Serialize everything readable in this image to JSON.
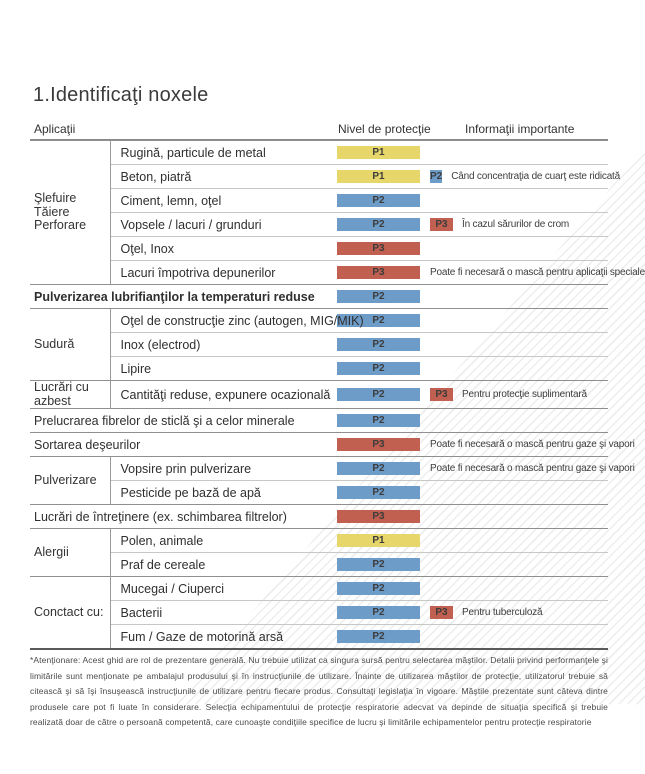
{
  "page": {
    "title": "1.Identificaţi noxele"
  },
  "legend": {
    "colors": {
      "P1": "#e7d76b",
      "P2": "#6d9cc9",
      "P3": "#c16050"
    }
  },
  "table": {
    "columns": {
      "applications": "Aplicaţii",
      "protection": "Nivel de protecţie",
      "info": "Informaţii importante"
    },
    "sections": [
      {
        "category": "Şlefuire\nTăiere\nPerforare",
        "rows": [
          {
            "label": "Rugină, particule de metal",
            "badges": [
              "P1"
            ],
            "note": ""
          },
          {
            "label": "Beton, piatră",
            "badges": [
              "P1",
              "P2"
            ],
            "note": "Când concentraţia de cuarţ este ridicată"
          },
          {
            "label": "Ciment, lemn, oţel",
            "badges": [
              "P2"
            ],
            "note": ""
          },
          {
            "label": "Vopsele / lacuri / grunduri",
            "badges": [
              "P2",
              "P3"
            ],
            "note": "În cazul sărurilor de crom"
          },
          {
            "label": "Oţel, Inox",
            "badges": [
              "P3"
            ],
            "note": ""
          },
          {
            "label": "Lacuri împotriva depunerilor",
            "badges": [
              "P3"
            ],
            "note": "Poate fi necesară o mască pentru aplicaţii speciale"
          }
        ]
      },
      {
        "category": null,
        "bold": true,
        "rows": [
          {
            "label": "Pulverizarea lubrifianţilor la temperaturi reduse",
            "badges": [
              "P2"
            ],
            "note": ""
          }
        ]
      },
      {
        "category": "Sudură",
        "rows": [
          {
            "label": "Oţel de construcţie zinc (autogen, MIG/MIK)",
            "badges": [
              "P2"
            ],
            "note": ""
          },
          {
            "label": "Inox (electrod)",
            "badges": [
              "P2"
            ],
            "note": ""
          },
          {
            "label": "Lipire",
            "badges": [
              "P2"
            ],
            "note": ""
          }
        ]
      },
      {
        "category": "Lucrări cu azbest",
        "rows": [
          {
            "label": "Cantităţi reduse, expunere ocazională",
            "badges": [
              "P2",
              "P3"
            ],
            "note": "Pentru protecţie suplimentară"
          }
        ]
      },
      {
        "category": null,
        "rows": [
          {
            "label": "Prelucrarea fibrelor de sticlă şi a celor minerale",
            "badges": [
              "P2"
            ],
            "note": ""
          }
        ]
      },
      {
        "category": null,
        "rows": [
          {
            "label": "Sortarea deşeurilor",
            "badges": [
              "P3"
            ],
            "note": "Poate fi necesară o mască pentru gaze şi vapori"
          }
        ]
      },
      {
        "category": "Pulverizare",
        "rows": [
          {
            "label": "Vopsire prin pulverizare",
            "badges": [
              "P2"
            ],
            "note": "Poate fi necesară o mască pentru gaze şi vapori"
          },
          {
            "label": "Pesticide pe bază de apă",
            "badges": [
              "P2"
            ],
            "note": ""
          }
        ]
      },
      {
        "category": null,
        "rows": [
          {
            "label": "Lucrări de întreţinere (ex. schimbarea filtrelor)",
            "badges": [
              "P3"
            ],
            "note": ""
          }
        ]
      },
      {
        "category": "Alergii",
        "rows": [
          {
            "label": "Polen, animale",
            "badges": [
              "P1"
            ],
            "note": ""
          },
          {
            "label": "Praf de cereale",
            "badges": [
              "P2"
            ],
            "note": ""
          }
        ]
      },
      {
        "category": "Conctact cu:",
        "rows": [
          {
            "label": "Mucegai / Ciuperci",
            "badges": [
              "P2"
            ],
            "note": ""
          },
          {
            "label": "Bacterii",
            "badges": [
              "P2",
              "P3"
            ],
            "note": "Pentru tuberculoză"
          },
          {
            "label": "Fum / Gaze de motorină arsă",
            "badges": [
              "P2"
            ],
            "note": ""
          }
        ]
      }
    ]
  },
  "footnote": {
    "text": "*Atenţionare: Acest ghid are rol de prezentare generală. Nu trebuie utilizat ca singura sursă pentru selectarea măştilor. Detalii privind performanţele şi limitările sunt menţionate pe ambalajul produsului şi în instrucţiunile de utilizare. Înainte de utilizarea măştilor de protecţie, utilizatorul trebuie să citească şi să îşi însuşească instrucţiunile de utilizare pentru fiecare produs. Consultaţi legislaţia în vigoare. Măştile prezentate sunt câteva dintre produsele care pot fi luate în considerare. Selecţia echipamentului de protecţie respiratorie adecvat va depinde de situaţia specifică şi trebuie realizată doar de către o persoană competentă, care cunoaşte condiţiile specifice de lucru şi limitările echipamentelor pentru protecţie respiratorie"
  }
}
